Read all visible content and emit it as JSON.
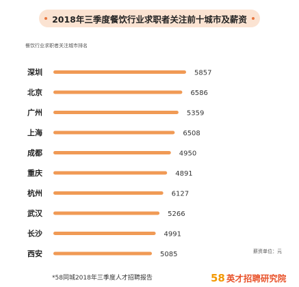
{
  "header": {
    "title": "2018年三季度餐饮行业求职者关注前十城市及薪资"
  },
  "chart_data": {
    "type": "bar",
    "orientation": "horizontal",
    "subtitle": "餐饮行业求职者关注城市排名",
    "unit_label": "薪资单位：元",
    "categories": [
      "深圳",
      "北京",
      "广州",
      "上海",
      "成都",
      "重庆",
      "杭州",
      "武汉",
      "长沙",
      "西安"
    ],
    "values": [
      5857,
      6586,
      5359,
      6508,
      4950,
      4891,
      6127,
      5266,
      4991,
      5085
    ],
    "bar_order_rank": [
      1,
      2,
      3,
      4,
      5,
      6,
      7,
      8,
      9,
      10
    ],
    "bar_color": "#f09a55",
    "grid": false,
    "legend": "none"
  },
  "footer": {
    "source": "*58同城2018年三季度人才招聘报告",
    "brand_logo": "58",
    "brand_text": "英才招聘研究院"
  },
  "colors": {
    "title_pill": "#fbe3d2",
    "accent": "#e8753e",
    "bar": "#f09a55",
    "brand_logo": "#f39800",
    "brand_text": "#e8522a"
  }
}
